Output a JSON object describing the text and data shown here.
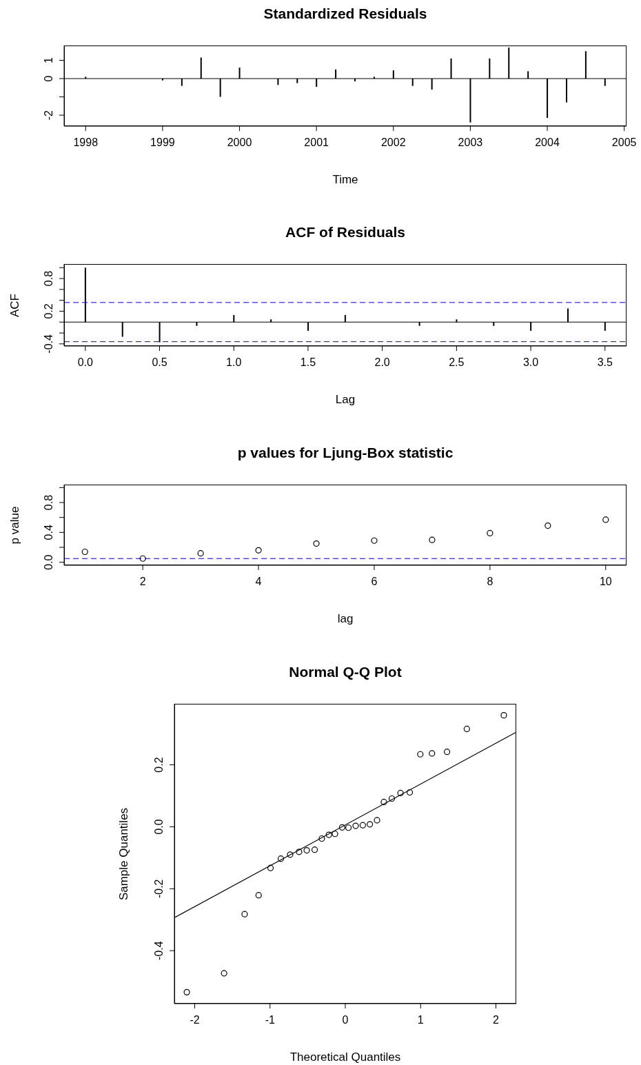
{
  "chart_data": [
    {
      "type": "bar",
      "title": "Standardized Residuals",
      "xlabel": "Time",
      "x": [
        1998,
        1998.25,
        1998.5,
        1998.75,
        1999,
        1999.25,
        1999.5,
        1999.75,
        2000,
        2000.25,
        2000.5,
        2000.75,
        2001,
        2001.25,
        2001.5,
        2001.75,
        2002,
        2002.25,
        2002.5,
        2002.75,
        2003,
        2003.25,
        2003.5,
        2003.75,
        2004,
        2004.25,
        2004.5,
        2004.75
      ],
      "values": [
        0.1,
        0,
        0,
        0,
        -0.1,
        -0.4,
        1.15,
        -1.0,
        0.6,
        0,
        -0.35,
        -0.25,
        -0.45,
        0.5,
        -0.15,
        0.1,
        0.45,
        -0.4,
        -0.6,
        1.1,
        -2.4,
        1.1,
        1.7,
        0.4,
        -2.15,
        -1.3,
        1.5,
        -0.4
      ],
      "color": "#000000",
      "xlim": [
        1997.72,
        2005.03
      ],
      "xticks": [
        1998,
        1999,
        2000,
        2001,
        2002,
        2003,
        2004,
        2005
      ],
      "ylim": [
        -2.6,
        1.81
      ],
      "yticks": [
        -2,
        {
          "value": -1,
          "label": null
        },
        0,
        1
      ],
      "ref_lines": [
        {
          "axis": "y",
          "value": 0,
          "color": "#000000",
          "line_style": "solid"
        }
      ]
    },
    {
      "type": "bar",
      "title": "ACF of Residuals",
      "xlabel": "Lag",
      "ylabel": "ACF",
      "x": [
        0,
        0.25,
        0.5,
        0.75,
        1,
        1.25,
        1.5,
        1.75,
        2,
        2.25,
        2.5,
        2.75,
        3,
        3.25,
        3.5
      ],
      "values": [
        1.0,
        -0.27,
        -0.37,
        -0.07,
        0.13,
        0.05,
        -0.16,
        0.13,
        0.0,
        -0.07,
        0.05,
        -0.07,
        -0.16,
        0.25,
        -0.16
      ],
      "color": "#000000",
      "xlim": [
        -0.143,
        3.645
      ],
      "xticks": [
        {
          "value": 0,
          "label": "0.0"
        },
        0.5,
        {
          "value": 1,
          "label": "1.0"
        },
        1.5,
        {
          "value": 2,
          "label": "2.0"
        },
        2.5,
        {
          "value": 3,
          "label": "3.0"
        },
        3.5
      ],
      "ylim": [
        -0.44,
        1.067
      ],
      "yticks": [
        {
          "value": -0.4,
          "label": "-0.4"
        },
        {
          "value": -0.2,
          "label": null
        },
        {
          "value": 0,
          "label": null
        },
        0.2,
        {
          "value": 0.4,
          "label": null
        },
        {
          "value": 0.6,
          "label": null
        },
        0.8,
        {
          "value": 1,
          "label": null
        }
      ],
      "ref_lines": [
        {
          "axis": "y",
          "value": 0,
          "color": "#000000",
          "line_style": "solid"
        },
        {
          "axis": "y",
          "value": 0.36,
          "color": "#0000ff",
          "line_style": "dashed"
        },
        {
          "axis": "y",
          "value": -0.36,
          "color": "#0000ff",
          "line_style": "dashed"
        }
      ]
    },
    {
      "type": "scatter",
      "title": "p values for Ljung-Box statistic",
      "xlabel": "lag",
      "ylabel": "p value",
      "x": [
        1,
        2,
        3,
        4,
        5,
        6,
        7,
        8,
        9,
        10
      ],
      "values": [
        0.14,
        0.05,
        0.12,
        0.16,
        0.25,
        0.29,
        0.3,
        0.39,
        0.49,
        0.57
      ],
      "color": "#000000",
      "marker": "circle",
      "xlim": [
        0.64,
        10.36
      ],
      "xticks": [
        2,
        4,
        6,
        8,
        10
      ],
      "ylim": [
        -0.04,
        1.04
      ],
      "yticks": [
        {
          "value": 0,
          "label": "0.0"
        },
        {
          "value": 0.2,
          "label": null
        },
        0.4,
        {
          "value": 0.6,
          "label": null
        },
        0.8,
        {
          "value": 1,
          "label": null
        }
      ],
      "ref_lines": [
        {
          "axis": "y",
          "value": 0.05,
          "color": "#0000ff",
          "line_style": "dashed"
        }
      ]
    },
    {
      "type": "scatter",
      "title": "Normal Q-Q Plot",
      "xlabel": "Theoretical Quantiles",
      "ylabel": "Sample Quantiles",
      "xlim": [
        -2.27,
        2.27
      ],
      "xticks": [
        -2,
        -1,
        0,
        1,
        2
      ],
      "ylim": [
        -0.571,
        0.397
      ],
      "yticks": [
        -0.4,
        -0.2,
        {
          "value": 0,
          "label": "0.0"
        },
        0.2
      ],
      "series": [
        {
          "marker": "circle",
          "color": "#000000",
          "x": [
            -2.105,
            -1.61,
            -1.337,
            -1.151,
            -0.993,
            -0.856,
            -0.733,
            -0.614,
            -0.512,
            -0.407,
            -0.312,
            -0.218,
            -0.137,
            -0.042,
            0.042,
            0.137,
            0.232,
            0.326,
            0.421,
            0.512,
            0.618,
            0.733,
            0.856,
            0.996,
            1.151,
            1.351,
            1.614,
            2.105
          ],
          "values": [
            -0.534,
            -0.473,
            -0.282,
            -0.221,
            -0.133,
            -0.103,
            -0.09,
            -0.081,
            -0.076,
            -0.074,
            -0.038,
            -0.026,
            -0.023,
            -0.002,
            -0.003,
            0.003,
            0.005,
            0.008,
            0.021,
            0.08,
            0.091,
            0.109,
            0.111,
            0.234,
            0.237,
            0.242,
            0.316,
            0.36
          ]
        },
        {
          "type": "line",
          "color": "#000000",
          "x": [
            -2.26,
            2.26
          ],
          "values": [
            -0.292,
            0.304
          ]
        }
      ]
    }
  ]
}
